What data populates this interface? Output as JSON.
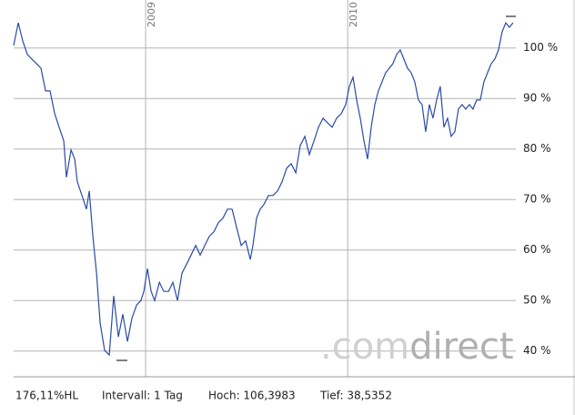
{
  "chart_data": {
    "type": "line",
    "color": "#2a4aa8",
    "x": [
      2008.347,
      2008.37,
      2008.392,
      2008.415,
      2008.437,
      2008.46,
      2008.482,
      2008.505,
      2008.527,
      2008.55,
      2008.572,
      2008.595,
      2008.608,
      2008.631,
      2008.649,
      2008.662,
      2008.685,
      2008.707,
      2008.721,
      2008.739,
      2008.757,
      2008.775,
      2008.797,
      2008.82,
      2008.842,
      2008.865,
      2008.887,
      2008.91,
      2008.932,
      2008.955,
      2008.977,
      2008.991,
      2009.009,
      2009.027,
      2009.045,
      2009.068,
      2009.09,
      2009.113,
      2009.135,
      2009.158,
      2009.18,
      2009.203,
      2009.225,
      2009.248,
      2009.27,
      2009.293,
      2009.315,
      2009.338,
      2009.36,
      2009.383,
      2009.405,
      2009.428,
      2009.45,
      2009.473,
      2009.495,
      2009.518,
      2009.531,
      2009.549,
      2009.567,
      2009.585,
      2009.608,
      2009.63,
      2009.653,
      2009.675,
      2009.698,
      2009.72,
      2009.743,
      2009.765,
      2009.788,
      2009.81,
      2009.833,
      2009.855,
      2009.878,
      2009.9,
      2009.923,
      2009.945,
      2009.968,
      2009.99,
      2010.008,
      2010.026,
      2010.044,
      2010.062,
      2010.08,
      2010.098,
      2010.116,
      2010.134,
      2010.152,
      2010.17,
      2010.188,
      2010.206,
      2010.224,
      2010.242,
      2010.26,
      2010.278,
      2010.296,
      2010.314,
      2010.332,
      2010.35,
      2010.368,
      2010.386,
      2010.404,
      2010.422,
      2010.44,
      2010.458,
      2010.476,
      2010.494,
      2010.512,
      2010.53,
      2010.548,
      2010.566,
      2010.584,
      2010.602,
      2010.62,
      2010.638,
      2010.656,
      2010.674,
      2010.692,
      2010.71,
      2010.728,
      2010.746,
      2010.764,
      2010.782,
      2010.8,
      2010.818
    ],
    "values": [
      100.5,
      105.0,
      101.4,
      98.7,
      97.8,
      96.9,
      96.0,
      91.5,
      91.5,
      87.0,
      84.3,
      81.6,
      74.4,
      79.8,
      78.0,
      73.5,
      70.8,
      68.1,
      71.7,
      62.7,
      55.4,
      45.5,
      40.1,
      39.2,
      50.9,
      42.8,
      47.3,
      41.9,
      46.4,
      49.1,
      50.0,
      51.8,
      56.3,
      51.8,
      50.0,
      53.6,
      51.8,
      51.8,
      53.6,
      50.0,
      55.4,
      57.2,
      59.0,
      60.9,
      59.0,
      60.9,
      62.7,
      63.6,
      65.4,
      66.3,
      68.1,
      68.1,
      64.5,
      60.9,
      61.8,
      58.1,
      60.9,
      66.3,
      68.1,
      69.0,
      70.8,
      70.8,
      71.7,
      73.5,
      76.2,
      77.1,
      75.3,
      80.7,
      82.5,
      78.9,
      81.6,
      84.3,
      86.1,
      85.2,
      84.3,
      86.1,
      87.0,
      88.8,
      92.4,
      94.2,
      89.7,
      86.1,
      81.6,
      78.0,
      84.3,
      88.8,
      91.5,
      93.3,
      95.1,
      96.0,
      96.9,
      98.7,
      99.6,
      97.8,
      96.0,
      95.1,
      93.3,
      89.7,
      88.8,
      83.4,
      88.8,
      86.1,
      89.7,
      92.4,
      84.3,
      86.1,
      82.5,
      83.4,
      87.9,
      88.8,
      87.9,
      88.8,
      87.9,
      89.7,
      89.7,
      93.3,
      95.1,
      96.9,
      97.8,
      99.6,
      103.2,
      105.0,
      104.1,
      105.0
    ],
    "xlim": [
      2008.347,
      2010.832
    ],
    "xticks": [
      2009,
      2010
    ],
    "ylim": [
      34.9,
      109.5
    ],
    "yticks": [
      {
        "value": 40,
        "label": "40 %"
      },
      {
        "value": 50,
        "label": "50 %"
      },
      {
        "value": 60,
        "label": "60 %"
      },
      {
        "value": 70,
        "label": "70 %"
      },
      {
        "value": 80,
        "label": "80 %"
      },
      {
        "value": 90,
        "label": "90 %"
      },
      {
        "value": 100,
        "label": "100 %"
      }
    ],
    "grid": true,
    "footer": [
      "176,11%HL",
      "Intervall: 1 Tag",
      "Hoch: 106,3983",
      "Tief: 38,5352"
    ],
    "watermark": [
      ".com",
      "direct"
    ]
  }
}
